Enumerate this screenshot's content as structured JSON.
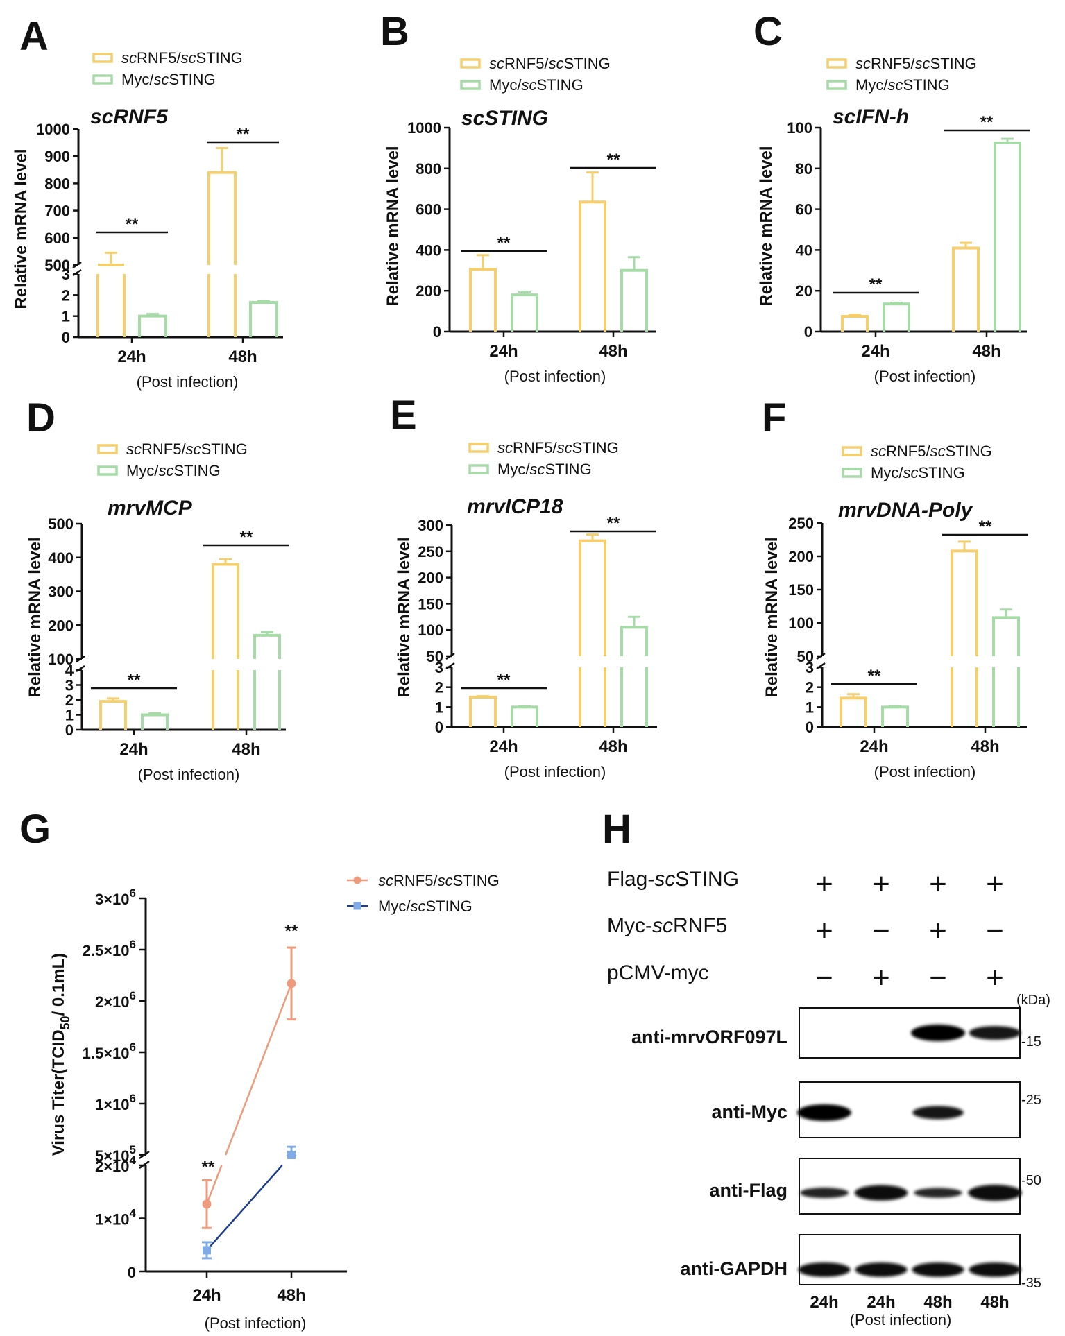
{
  "figure": {
    "legend_series": [
      "scRNF5/scSTING",
      "Myc/scSTING"
    ],
    "colors": {
      "rnf5": "#f5cf6e",
      "myc": "#a6dba7",
      "g_rnf5": "#ee9a7c",
      "g_myc": "#7faae3",
      "g_myc_line": "#1c3e8c"
    }
  },
  "chart_data": [
    {
      "id": "A",
      "type": "bar",
      "title": "scRNF5",
      "categories": [
        "24h",
        "48h"
      ],
      "xlabel": "(Post infection)",
      "ylabel": "Relative  mRNA level",
      "series": [
        {
          "name": "scRNF5/scSTING",
          "values": [
            500,
            840
          ],
          "errors": [
            45,
            90
          ]
        },
        {
          "name": "Myc/scSTING",
          "values": [
            1.0,
            1.65
          ],
          "errors": [
            0.1,
            0.08
          ]
        }
      ],
      "axis_break": {
        "lower": [
          0,
          3
        ],
        "upper": [
          500,
          1000
        ]
      },
      "y_ticks_lower": [
        "0",
        "1",
        "2",
        "3"
      ],
      "y_ticks_upper": [
        "500",
        "600",
        "700",
        "800",
        "900",
        "1000"
      ],
      "significance": [
        "**",
        "**"
      ]
    },
    {
      "id": "B",
      "type": "bar",
      "title": "scSTING",
      "categories": [
        "24h",
        "48h"
      ],
      "xlabel": "(Post infection)",
      "ylabel": "Relative  mRNA level",
      "series": [
        {
          "name": "scRNF5/scSTING",
          "values": [
            305,
            635
          ],
          "errors": [
            70,
            145
          ]
        },
        {
          "name": "Myc/scSTING",
          "values": [
            180,
            300
          ],
          "errors": [
            15,
            65
          ]
        }
      ],
      "ylim": [
        0,
        1000
      ],
      "y_ticks": [
        "0",
        "200",
        "400",
        "600",
        "800",
        "1000"
      ],
      "significance": [
        "**",
        "**"
      ]
    },
    {
      "id": "C",
      "type": "bar",
      "title": "scIFN-h",
      "categories": [
        "24h",
        "48h"
      ],
      "xlabel": "(Post infection)",
      "ylabel": "Relative  mRNA level",
      "series": [
        {
          "name": "scRNF5/scSTING",
          "values": [
            7.5,
            41
          ],
          "errors": [
            0.8,
            2.5
          ]
        },
        {
          "name": "Myc/scSTING",
          "values": [
            13.5,
            92.5
          ],
          "errors": [
            0.6,
            2
          ]
        }
      ],
      "ylim": [
        0,
        100
      ],
      "y_ticks": [
        "0",
        "20",
        "40",
        "60",
        "80",
        "100"
      ],
      "significance": [
        "**",
        "**"
      ]
    },
    {
      "id": "D",
      "type": "bar",
      "title": "mrvMCP",
      "categories": [
        "24h",
        "48h"
      ],
      "xlabel": "(Post infection)",
      "ylabel": "Relative  mRNA level",
      "series": [
        {
          "name": "scRNF5/scSTING",
          "values": [
            1.9,
            380
          ],
          "errors": [
            0.2,
            15
          ]
        },
        {
          "name": "Myc/scSTING",
          "values": [
            1.0,
            170
          ],
          "errors": [
            0.1,
            10
          ]
        }
      ],
      "axis_break": {
        "lower": [
          0,
          4
        ],
        "upper": [
          100,
          500
        ]
      },
      "y_ticks_lower": [
        "0",
        "1",
        "2",
        "3",
        "4"
      ],
      "y_ticks_upper": [
        "100",
        "200",
        "300",
        "400",
        "500"
      ],
      "significance": [
        "**",
        "**"
      ]
    },
    {
      "id": "E",
      "type": "bar",
      "title": "mrvICP18",
      "categories": [
        "24h",
        "48h"
      ],
      "xlabel": "(Post infection)",
      "ylabel": "Relative  mRNA level",
      "series": [
        {
          "name": "scRNF5/scSTING",
          "values": [
            1.5,
            270
          ],
          "errors": [
            0.05,
            12
          ]
        },
        {
          "name": "Myc/scSTING",
          "values": [
            1.0,
            105
          ],
          "errors": [
            0.05,
            20
          ]
        }
      ],
      "axis_break": {
        "lower": [
          0,
          3
        ],
        "upper": [
          50,
          300
        ]
      },
      "y_ticks_lower": [
        "0",
        "1",
        "2",
        "3"
      ],
      "y_ticks_upper": [
        "50",
        "100",
        "150",
        "200",
        "250",
        "300"
      ],
      "significance": [
        "**",
        "**"
      ]
    },
    {
      "id": "F",
      "type": "bar",
      "title": "mrvDNA-Poly",
      "categories": [
        "24h",
        "48h"
      ],
      "xlabel": "(Post infection)",
      "ylabel": "Relative  mRNA level",
      "series": [
        {
          "name": "scRNF5/scSTING",
          "values": [
            1.45,
            208
          ],
          "errors": [
            0.2,
            14
          ]
        },
        {
          "name": "Myc/scSTING",
          "values": [
            1.0,
            108
          ],
          "errors": [
            0.05,
            12
          ]
        }
      ],
      "axis_break": {
        "lower": [
          0,
          3
        ],
        "upper": [
          50,
          250
        ]
      },
      "y_ticks_lower": [
        "0",
        "1",
        "2",
        "3"
      ],
      "y_ticks_upper": [
        "50",
        "100",
        "150",
        "200",
        "250"
      ],
      "significance": [
        "**",
        "**"
      ]
    },
    {
      "id": "G",
      "type": "line",
      "categories": [
        "24h",
        "48h"
      ],
      "xlabel": "(Post infection)",
      "ylabel": "Virus Titer(TCID",
      "ylabel_sub": "50",
      "ylabel_tail": "/ 0.1mL)",
      "series": [
        {
          "name": "scRNF5/scSTING",
          "values": [
            12700,
            2170000
          ],
          "errors": [
            4500,
            350000
          ]
        },
        {
          "name": "Myc/scSTING",
          "values": [
            4000,
            380000
          ],
          "errors": [
            1500,
            200000
          ]
        }
      ],
      "axis_break": {
        "lower": [
          0,
          20000
        ],
        "upper": [
          500000,
          3000000
        ]
      },
      "y_tick_mantissa": [
        "0",
        "1×10",
        "2×10",
        "5×10",
        "1×10",
        "1.5×10",
        "2×10",
        "2.5×10",
        "3×10"
      ],
      "y_tick_exponent": [
        "",
        "4",
        "4",
        "5",
        "6",
        "6",
        "6",
        "6",
        "6"
      ],
      "significance": [
        "**",
        "**"
      ]
    }
  ],
  "western_blot": {
    "id": "H",
    "rows": [
      {
        "label": "Flag-",
        "label_italic": "sc",
        "label_tail": "STING",
        "signs": [
          "+",
          "+",
          "+",
          "+"
        ]
      },
      {
        "label": "Myc-",
        "label_italic": "sc",
        "label_tail": "RNF5",
        "signs": [
          "+",
          "−",
          "+",
          "−"
        ]
      },
      {
        "label": "pCMV-myc",
        "label_italic": "",
        "label_tail": "",
        "signs": [
          "−",
          "+",
          "−",
          "+"
        ]
      }
    ],
    "unit": "(kDa)",
    "blots": [
      {
        "label": "anti-mrvORF097L",
        "marker": "-15",
        "bands": [
          0,
          0,
          1.0,
          0.75
        ]
      },
      {
        "label": "anti-Myc",
        "marker": "-25",
        "bands": [
          1.0,
          0,
          0.7,
          0
        ]
      },
      {
        "label": "anti-Flag",
        "marker": "-50",
        "bands": [
          0.45,
          0.9,
          0.4,
          0.95
        ]
      },
      {
        "label": "anti-GAPDH",
        "marker": "-35",
        "bands": [
          0.8,
          0.8,
          0.8,
          0.8
        ]
      }
    ],
    "lane_labels": [
      "24h",
      "24h",
      "48h",
      "48h"
    ],
    "xlabel": "(Post infection)"
  }
}
